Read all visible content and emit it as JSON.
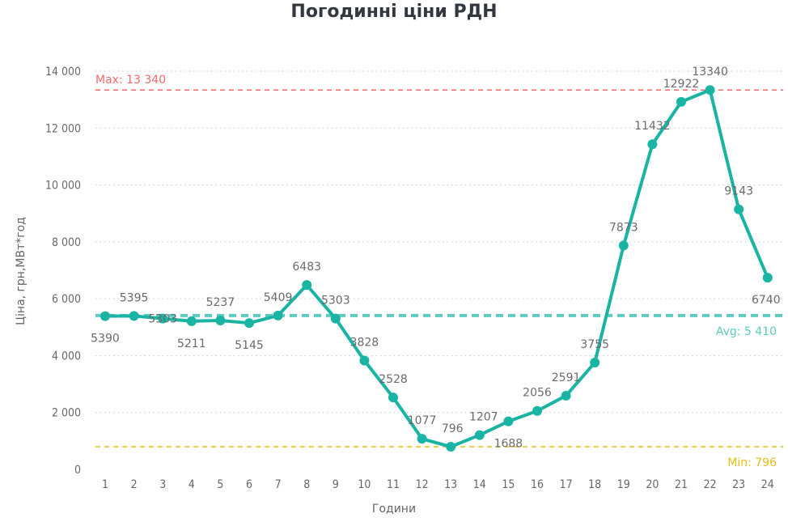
{
  "chart_data": {
    "type": "line",
    "title": "Погодинні ціни РДН",
    "xlabel": "Години",
    "ylabel": "Ціна, грн,МВт*год",
    "x": [
      1,
      2,
      3,
      4,
      5,
      6,
      7,
      8,
      9,
      10,
      11,
      12,
      13,
      14,
      15,
      16,
      17,
      18,
      19,
      20,
      21,
      22,
      23,
      24
    ],
    "values": [
      5390,
      5395,
      5303,
      5211,
      5237,
      5145,
      5409,
      6483,
      5303,
      3828,
      2528,
      1077,
      796,
      1207,
      1688,
      2056,
      2591,
      3755,
      7873,
      11432,
      12922,
      13340,
      9143,
      6740
    ],
    "ylim": [
      0,
      14000
    ],
    "yticks": [
      0,
      2000,
      4000,
      6000,
      8000,
      10000,
      12000,
      14000
    ],
    "ytick_labels": [
      "0",
      "2 000",
      "4 000",
      "6 000",
      "8 000",
      "10 000",
      "12 000",
      "14 000"
    ],
    "grid": "horizontal-dotted",
    "series_color": "#1ab4a4",
    "reference_lines": [
      {
        "label": "Max: 13 340",
        "value": 13340,
        "color": "#f06a6a",
        "style": "dashed",
        "label_side": "left"
      },
      {
        "label": "Avg: 5 410",
        "value": 5410,
        "color": "#5ecbc0",
        "style": "dashed-thick",
        "label_side": "right"
      },
      {
        "label": "Min: 796",
        "value": 796,
        "color": "#e8c015",
        "style": "dashed",
        "label_side": "right"
      }
    ]
  }
}
